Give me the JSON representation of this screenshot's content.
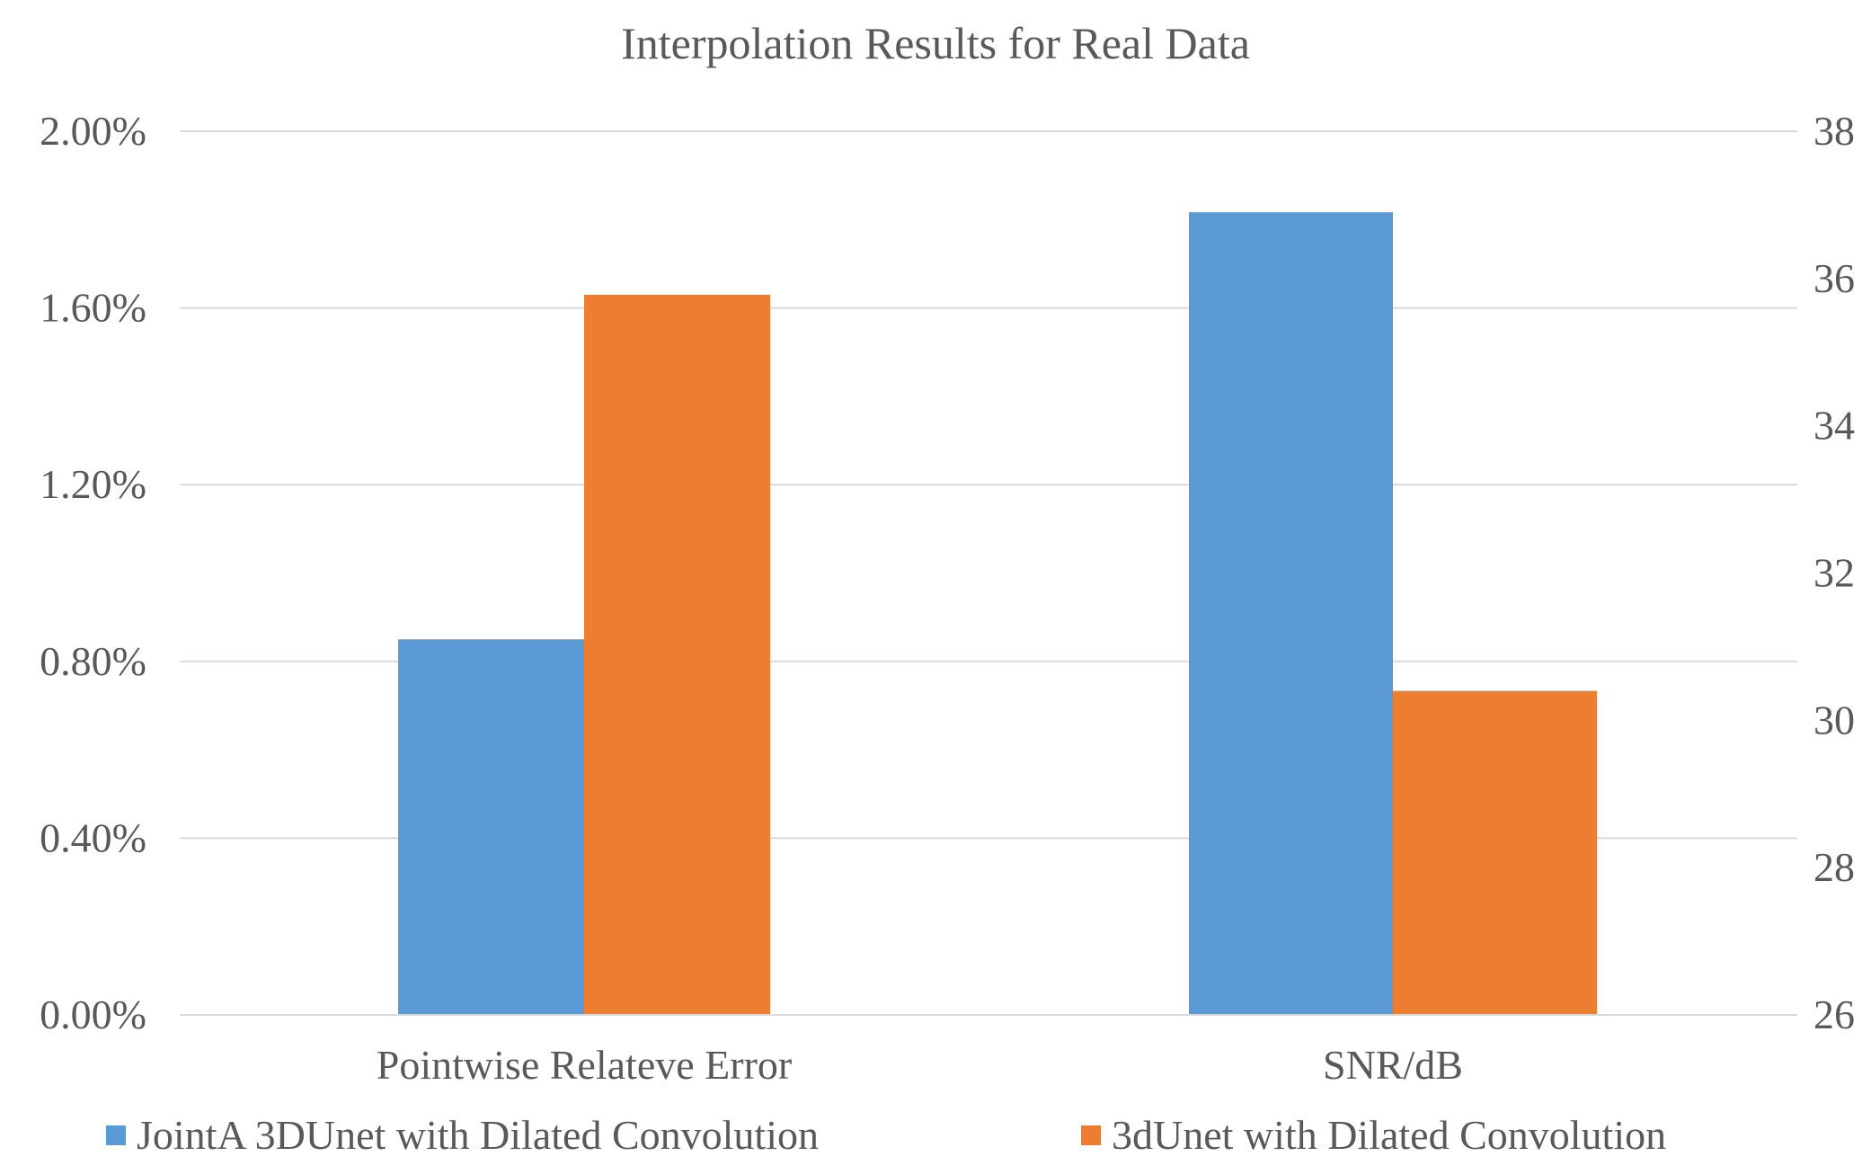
{
  "chart_data": {
    "type": "bar",
    "title": "Interpolation Results for Real Data",
    "categories": [
      "Pointwise Relateve Error",
      "SNR/dB"
    ],
    "series": [
      {
        "name": "JointA 3DUnet with Dilated Convolution",
        "color": "#5B9BD5",
        "values": [
          0.0085,
          36.9
        ],
        "axis": [
          "left",
          "right"
        ]
      },
      {
        "name": "3dUnet with Dilated Convolution",
        "color": "#ED7D31",
        "values": [
          0.0163,
          30.4
        ],
        "axis": [
          "left",
          "right"
        ]
      }
    ],
    "y_left": {
      "ylim": [
        0,
        0.02
      ],
      "ticks": [
        0,
        0.004,
        0.008,
        0.012,
        0.016,
        0.02
      ],
      "tick_labels": [
        "0.00%",
        "0.40%",
        "0.80%",
        "1.20%",
        "1.60%",
        "2.00%"
      ]
    },
    "y_right": {
      "ylim": [
        26,
        38
      ],
      "ticks": [
        26,
        28,
        30,
        32,
        34,
        36,
        38
      ],
      "tick_labels": [
        "26",
        "28",
        "30",
        "32",
        "34",
        "36",
        "38"
      ]
    },
    "grid": true,
    "legend_position": "bottom"
  }
}
